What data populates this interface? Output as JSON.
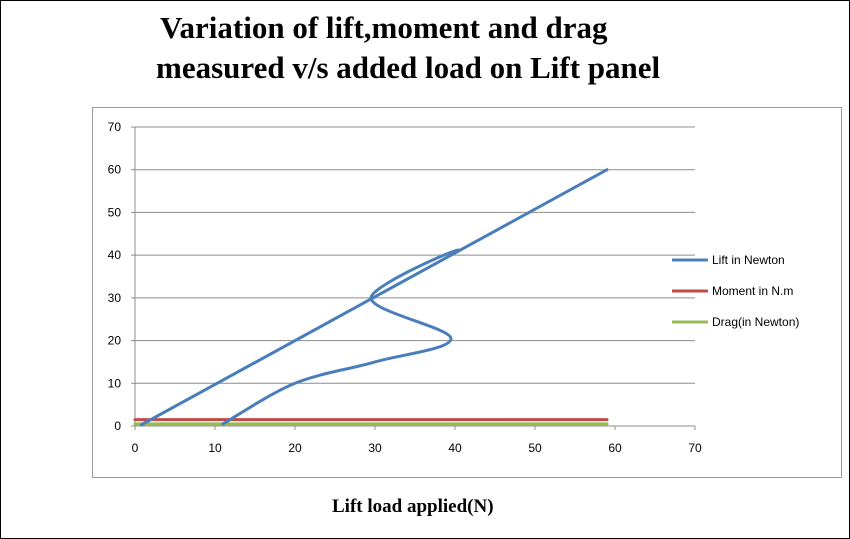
{
  "chart_data": {
    "type": "line",
    "title_line1": "Variation of lift,moment and drag",
    "title_line2": "measured v/s added load on Lift panel",
    "xlabel": "Lift load applied(N)",
    "ylabel": "",
    "xlim": [
      0,
      70
    ],
    "ylim": [
      0,
      70
    ],
    "xticks": [
      "0",
      "10",
      "20",
      "30",
      "40",
      "50",
      "60",
      "70"
    ],
    "yticks": [
      "0",
      "10",
      "20",
      "30",
      "40",
      "50",
      "60",
      "70"
    ],
    "grid": "horizontal",
    "legend_position": "right",
    "series": [
      {
        "name": "Lift in Newton",
        "color": "#4a7ebb",
        "points": [
          [
            11,
            0.5
          ],
          [
            20,
            10
          ],
          [
            30,
            15
          ],
          [
            39.5,
            20.5
          ],
          [
            29.5,
            30
          ],
          [
            39.5,
            40
          ],
          [
            1,
            0.5
          ],
          [
            59,
            60
          ]
        ]
      },
      {
        "name": "Moment in N.m",
        "color": "#be4b48",
        "points": [
          [
            0,
            1.5
          ],
          [
            59,
            1.5
          ]
        ]
      },
      {
        "name": "Drag(in Newton)",
        "color": "#98b954",
        "points": [
          [
            0,
            0.5
          ],
          [
            59,
            0.5
          ]
        ]
      }
    ]
  }
}
